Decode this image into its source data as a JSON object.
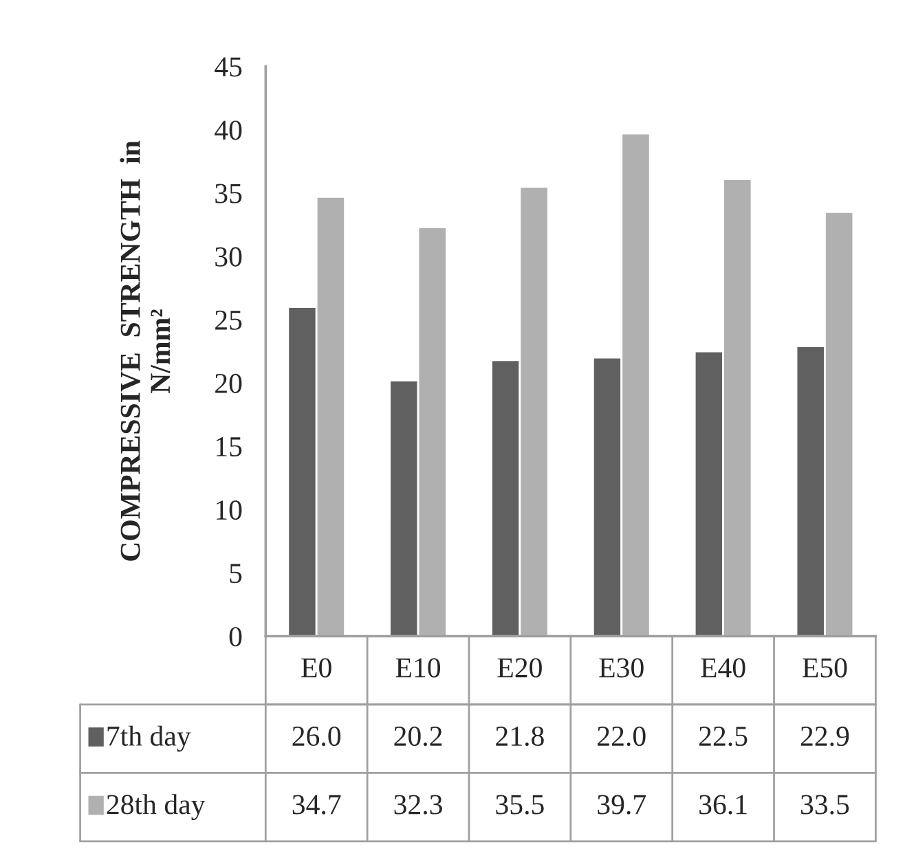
{
  "chart_data": {
    "type": "bar",
    "ylabel": "COMPRESSIVE  STRENGTH  in\nN/mm²",
    "categories": [
      "E0",
      "E10",
      "E20",
      "E30",
      "E40",
      "E50"
    ],
    "series": [
      {
        "name": "7th day",
        "color": "#606060",
        "values": [
          26.0,
          20.2,
          21.8,
          22.0,
          22.5,
          22.9
        ],
        "value_labels": [
          "26.0",
          "20.2",
          "21.8",
          "22.0",
          "22.5",
          "22.9"
        ]
      },
      {
        "name": "28th day",
        "color": "#b0b0b0",
        "values": [
          34.7,
          32.3,
          35.5,
          39.7,
          36.1,
          33.5
        ],
        "value_labels": [
          "34.7",
          "32.3",
          "35.5",
          "39.7",
          "36.1",
          "33.5"
        ]
      }
    ],
    "ylim": [
      0,
      45
    ],
    "yticks": [
      0,
      5,
      10,
      15,
      20,
      25,
      30,
      35,
      40,
      45
    ],
    "legend": "bottom",
    "grid": false
  }
}
